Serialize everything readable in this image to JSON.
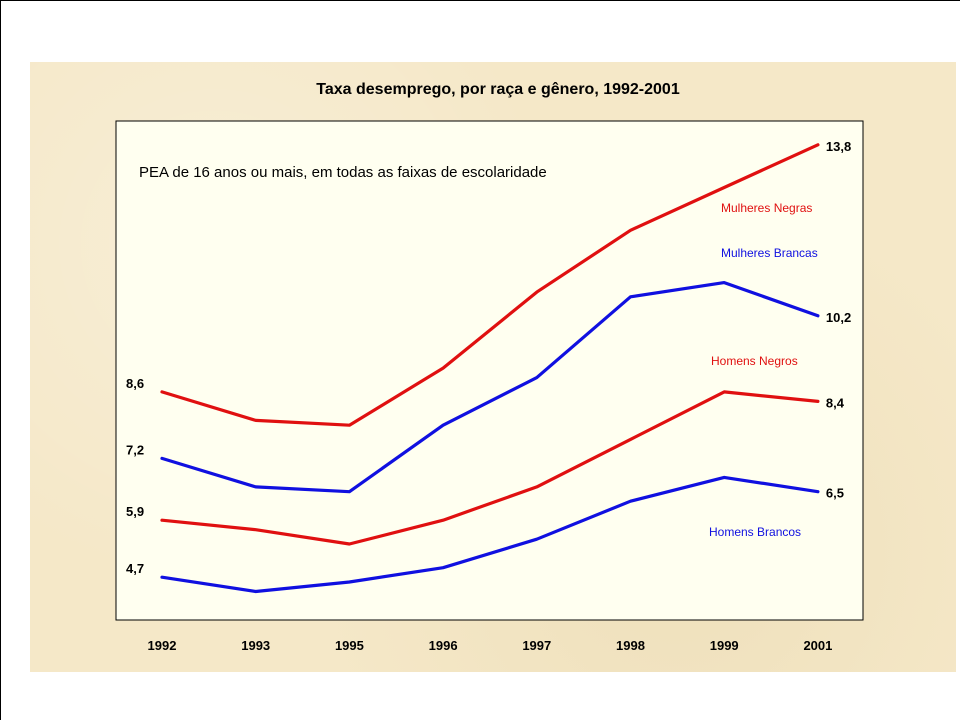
{
  "chart_data": {
    "type": "line",
    "title": "Taxa desemprego, por raça e gênero, 1992-2001",
    "subtitle": "PEA de 16 anos ou mais, em todas as faixas de escolaridade",
    "categories": [
      "1992",
      "1993",
      "1995",
      "1996",
      "1997",
      "1998",
      "1999",
      "2001"
    ],
    "ylim": [
      3.8,
      14.3
    ],
    "grid": false,
    "legend": "none",
    "colors": {
      "red": "#e01010",
      "blue": "#1010e0",
      "plot_bg": "#fffff0"
    },
    "series": [
      {
        "name": "Mulheres Negras",
        "color": "#e01010",
        "values": [
          8.6,
          8.0,
          7.9,
          9.1,
          10.7,
          12.0,
          12.9,
          13.8
        ]
      },
      {
        "name": "Mulheres Brancas",
        "color": "#1010e0",
        "values": [
          7.2,
          6.6,
          6.5,
          7.9,
          8.9,
          10.6,
          10.9,
          10.2
        ]
      },
      {
        "name": "Homens Negros",
        "color": "#e01010",
        "values": [
          5.9,
          5.7,
          5.4,
          5.9,
          6.6,
          7.6,
          8.6,
          8.4
        ]
      },
      {
        "name": "Homens Brancos",
        "color": "#1010e0",
        "values": [
          4.7,
          4.4,
          4.6,
          4.9,
          5.5,
          6.3,
          6.8,
          6.5
        ]
      }
    ],
    "start_labels": [
      "8,6",
      "7,2",
      "5,9",
      "4,7"
    ],
    "end_labels": [
      "13,8",
      "10,2",
      "8,4",
      "6,5"
    ]
  }
}
